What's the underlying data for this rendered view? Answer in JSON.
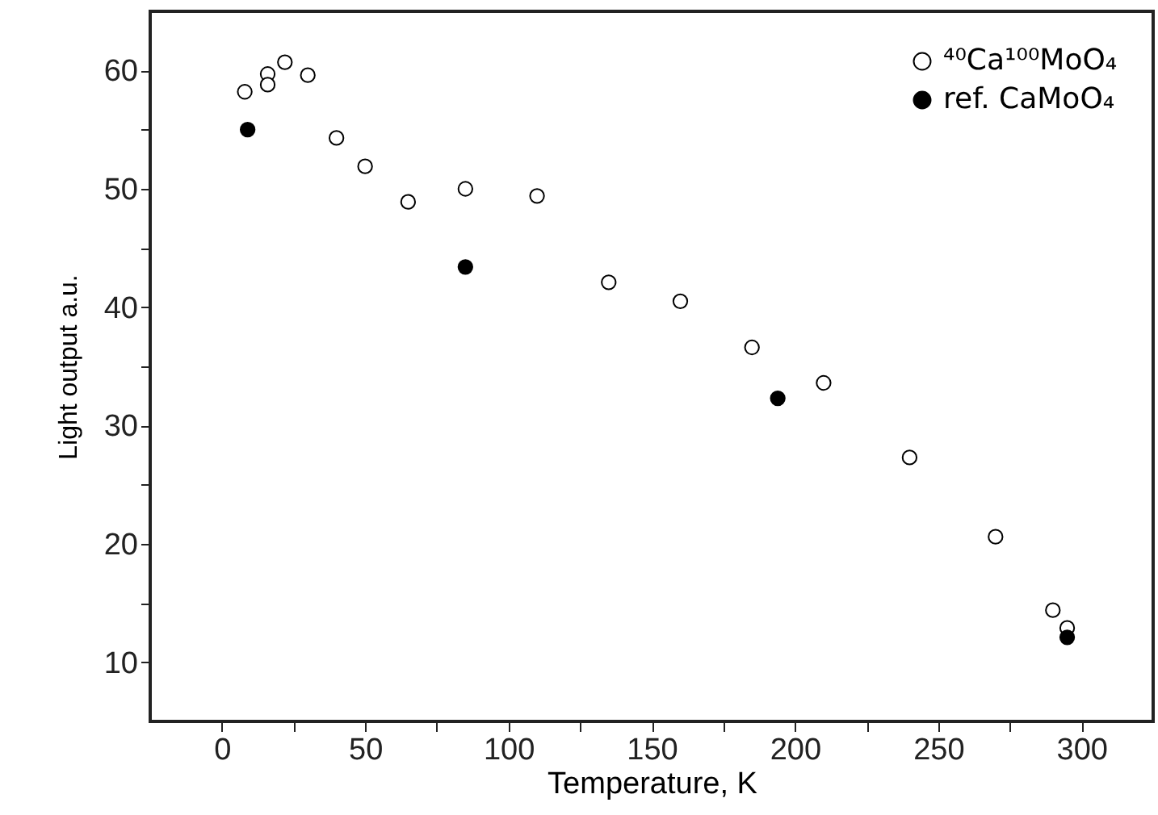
{
  "chart_data": {
    "type": "scatter",
    "xlabel": "Temperature, K",
    "ylabel": "Light output a.u.",
    "xlim": [
      -25,
      325
    ],
    "xticks": [
      0,
      {
        "value": 25,
        "label": null
      },
      50,
      {
        "value": 75,
        "label": null
      },
      100,
      {
        "value": 125,
        "label": null
      },
      150,
      {
        "value": 175,
        "label": null
      },
      200,
      {
        "value": 225,
        "label": null
      },
      250,
      {
        "value": 275,
        "label": null
      },
      300
    ],
    "ylim": [
      5,
      65
    ],
    "yticks": [
      10,
      {
        "value": 15,
        "label": null
      },
      20,
      {
        "value": 25,
        "label": null
      },
      30,
      {
        "value": 35,
        "label": null
      },
      40,
      {
        "value": 45,
        "label": null
      },
      50,
      {
        "value": 55,
        "label": null
      },
      60
    ],
    "marker": "circle",
    "legend": "top right",
    "grid": false,
    "series": [
      {
        "name": "⁴⁰Ca¹⁰⁰MoO₄",
        "color": "#000000",
        "x": [
          8,
          16,
          16,
          22,
          30,
          40,
          50,
          65,
          85,
          110,
          135,
          160,
          185,
          210,
          240,
          270,
          290,
          295
        ],
        "values": [
          58.2,
          59.7,
          58.8,
          60.7,
          59.6,
          54.3,
          51.9,
          48.9,
          50.0,
          49.4,
          42.1,
          40.5,
          36.6,
          33.6,
          27.3,
          20.6,
          14.4,
          12.9
        ]
      },
      {
        "name": "ref. CaMoO₄",
        "color": "#000000",
        "x": [
          9,
          85,
          194,
          295
        ],
        "values": [
          55.0,
          43.4,
          32.3,
          12.1
        ]
      }
    ]
  }
}
